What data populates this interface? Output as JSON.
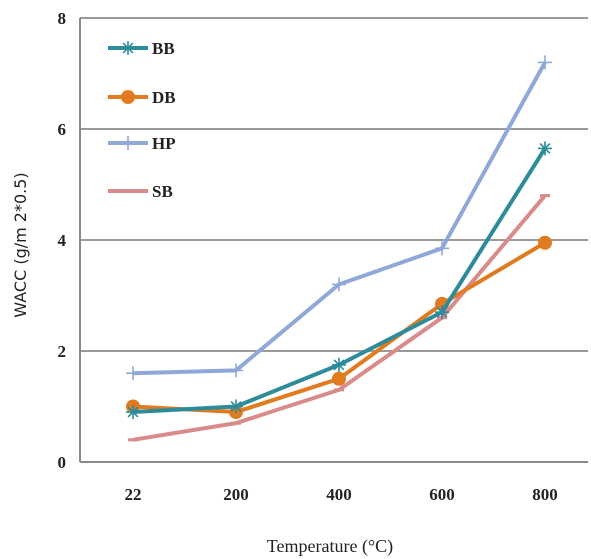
{
  "chart_data": {
    "type": "line",
    "categories": [
      "22",
      "200",
      "400",
      "600",
      "800"
    ],
    "xlabel": "Temperature (°C)",
    "ylabel": "WACC (g/m 2*0.5)",
    "ylim": [
      0,
      8
    ],
    "yticks": [
      "0",
      "2",
      "4",
      "6",
      "8"
    ],
    "grid": "horizontal",
    "legend_position": "top-left",
    "series": [
      {
        "name": "BB",
        "color": "#2e8b9a",
        "marker": "asterisk",
        "values": [
          0.9,
          1.0,
          1.75,
          2.7,
          5.65
        ]
      },
      {
        "name": "DB",
        "color": "#e07b1f",
        "marker": "circle",
        "values": [
          1.0,
          0.9,
          1.5,
          2.85,
          3.95
        ]
      },
      {
        "name": "HP",
        "color": "#8fa8d8",
        "marker": "plus",
        "values": [
          1.6,
          1.65,
          3.2,
          3.85,
          7.2
        ]
      },
      {
        "name": "SB",
        "color": "#d98b8b",
        "marker": "dash",
        "values": [
          0.4,
          0.7,
          1.3,
          2.6,
          4.8
        ]
      }
    ]
  }
}
